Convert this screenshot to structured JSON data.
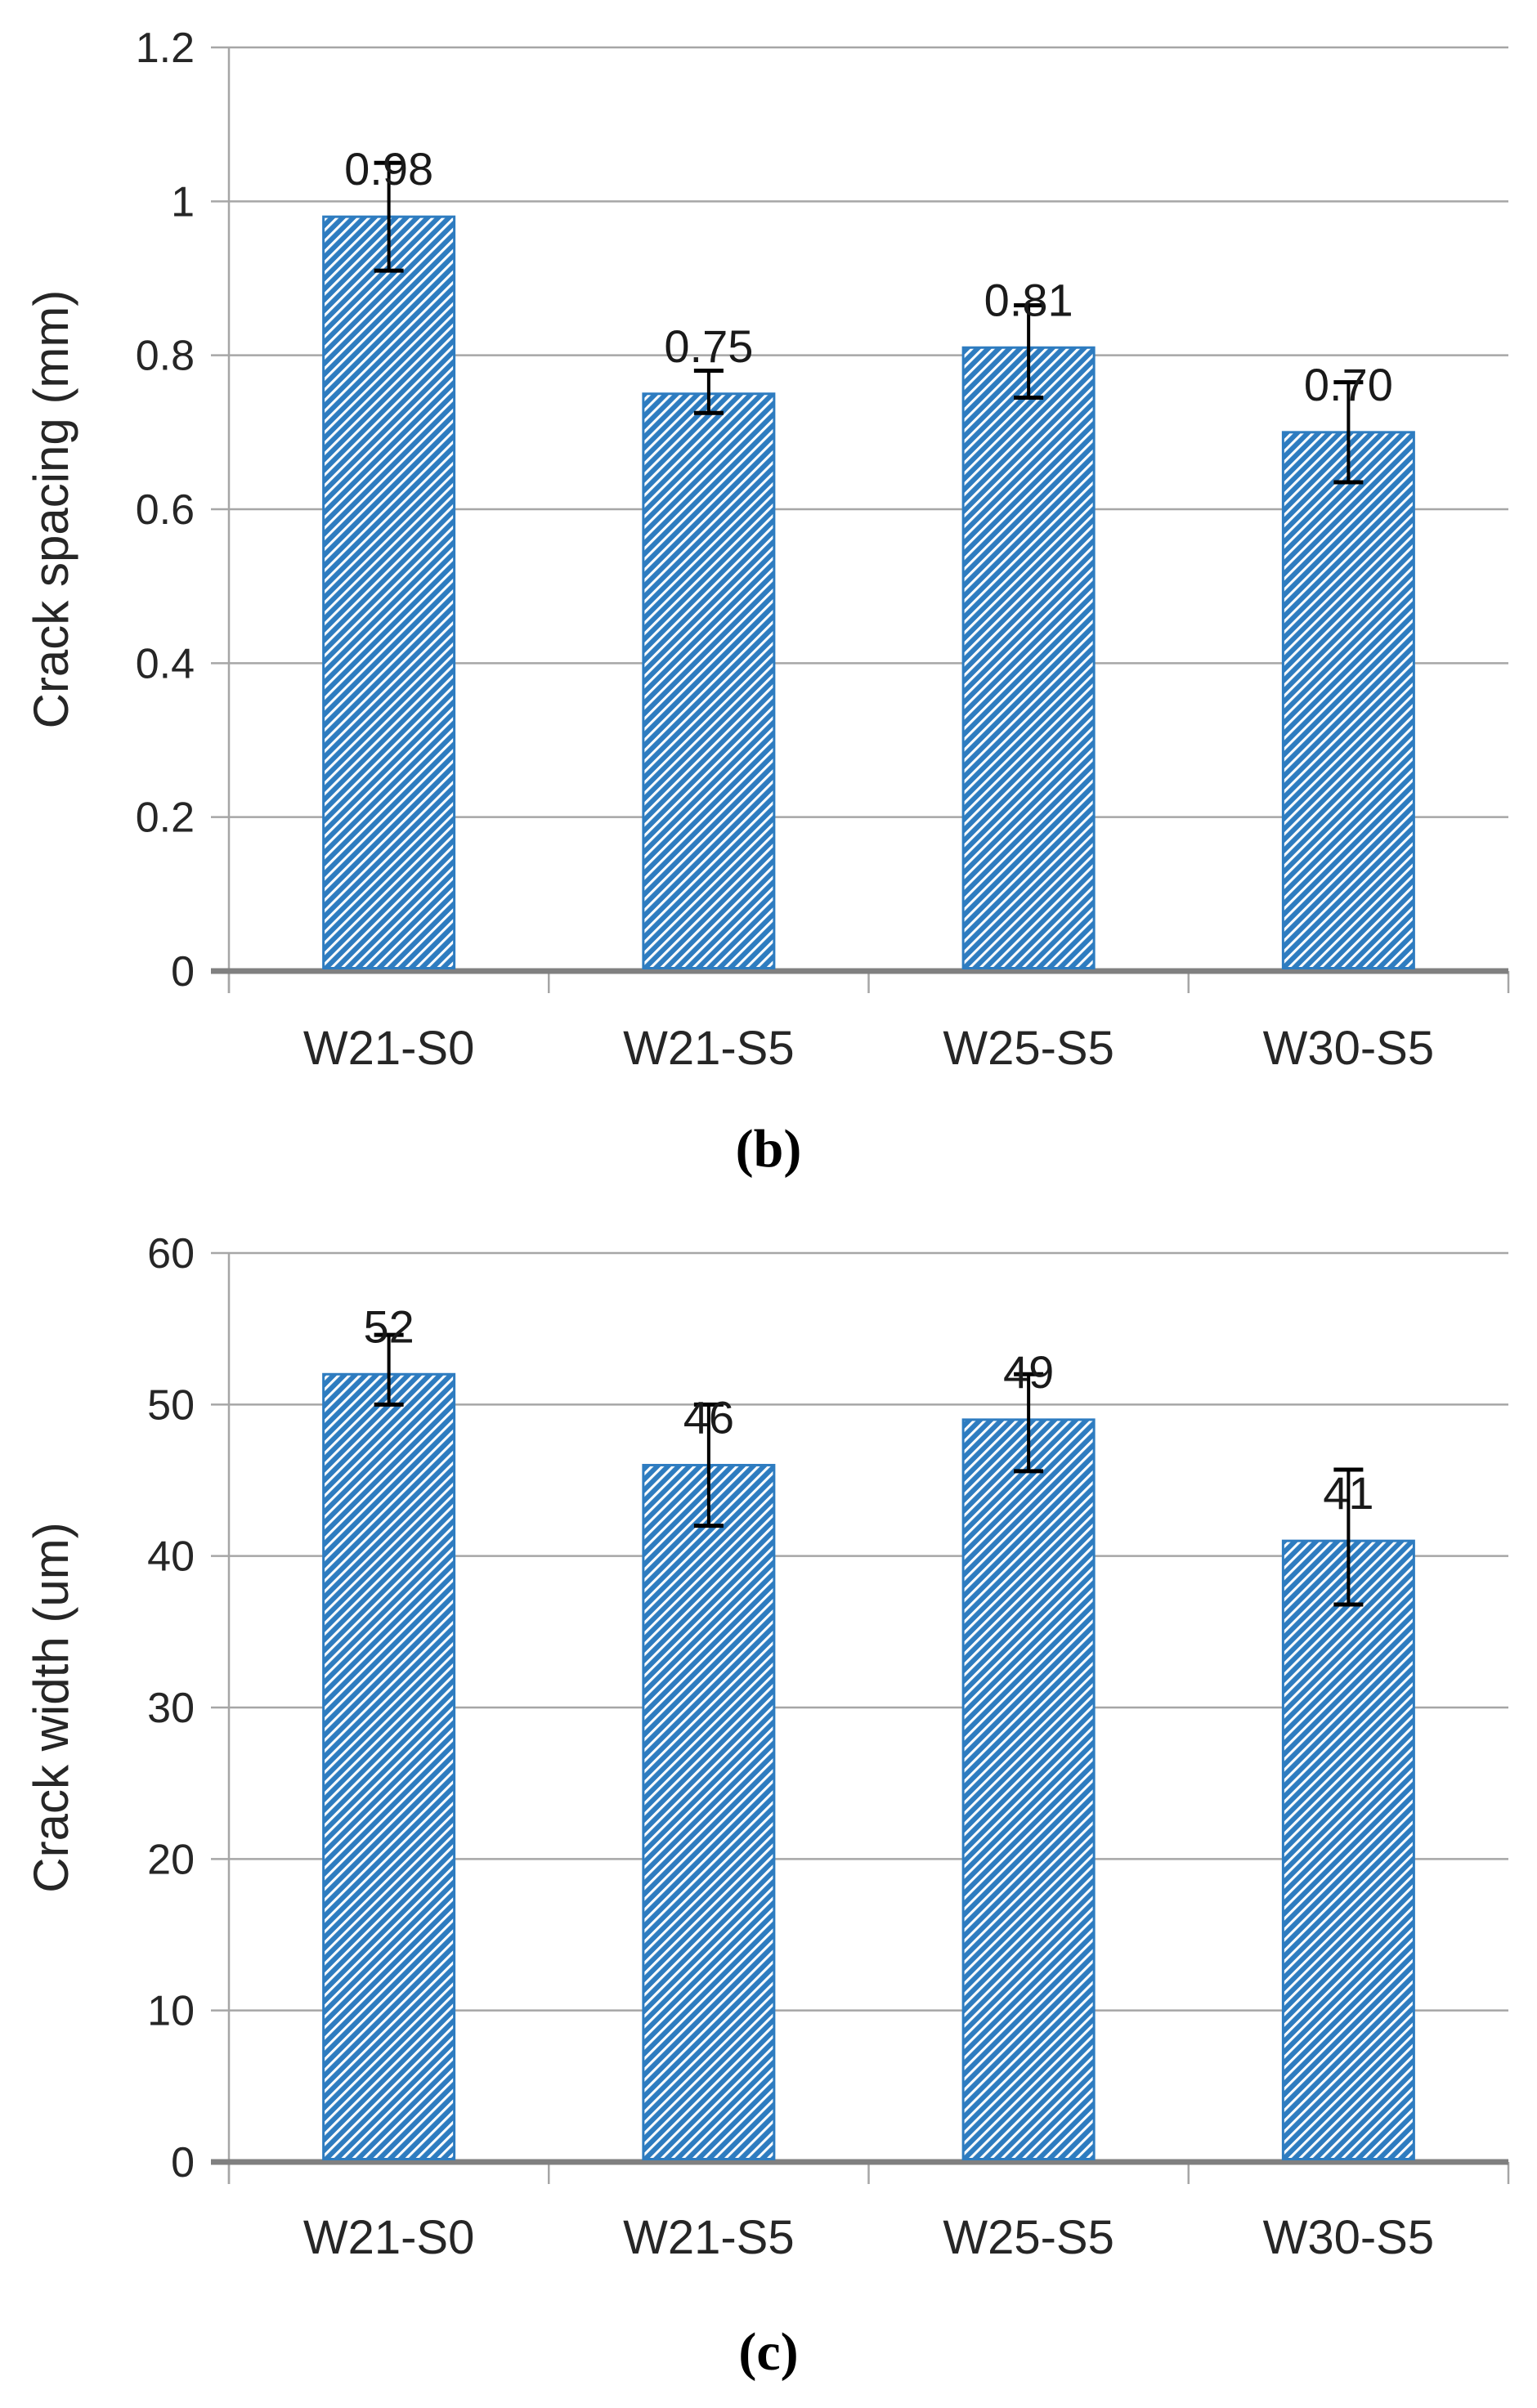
{
  "page": {
    "background": "#ffffff",
    "description": "Two stacked Excel-style bar charts with hatched bars and error bars"
  },
  "captions": {
    "b": "(b)",
    "c": "(c)"
  },
  "style": {
    "bar_fill_color": "#2E7CC0",
    "bar_hatch": "diagonal-stripes",
    "hatch_white_stripe": "#FFFFFF",
    "gridline_color": "#A6A6A6",
    "axis_zero_line_color": "#808080",
    "error_bar_color": "#000000",
    "text_color": "#262626",
    "data_label_color": "#1A1A1A"
  },
  "chart_data": [
    {
      "type": "bar",
      "panel": "b",
      "title": "",
      "xlabel": "",
      "ylabel": "Crack spacing (mm)",
      "categories": [
        "W21-S0",
        "W21-S5",
        "W25-S5",
        "W30-S5"
      ],
      "values": [
        0.98,
        0.75,
        0.81,
        0.7
      ],
      "data_labels": [
        "0.98",
        "0.75",
        "0.81",
        "0.70"
      ],
      "error_low": [
        0.91,
        0.725,
        0.745,
        0.635
      ],
      "error_high": [
        1.05,
        0.78,
        0.865,
        0.765
      ],
      "ylim": [
        0,
        1.2
      ],
      "ytick_step": 0.2,
      "ytick_labels": [
        "0",
        "0.2",
        "0.4",
        "0.6",
        "0.8",
        "1",
        "1.2"
      ],
      "grid": true,
      "legend": "none",
      "caption": "(b)"
    },
    {
      "type": "bar",
      "panel": "c",
      "title": "",
      "xlabel": "",
      "ylabel": "Crack width (um)",
      "categories": [
        "W21-S0",
        "W21-S5",
        "W25-S5",
        "W30-S5"
      ],
      "values": [
        52,
        46,
        49,
        41
      ],
      "data_labels": [
        "52",
        "46",
        "49",
        "41"
      ],
      "error_low": [
        50,
        42,
        45.6,
        36.8
      ],
      "error_high": [
        54.6,
        50,
        52,
        45.7
      ],
      "ylim": [
        0,
        60
      ],
      "ytick_step": 10,
      "ytick_labels": [
        "0",
        "10",
        "20",
        "30",
        "40",
        "50",
        "60"
      ],
      "grid": true,
      "legend": "none",
      "caption": "(c)"
    }
  ]
}
